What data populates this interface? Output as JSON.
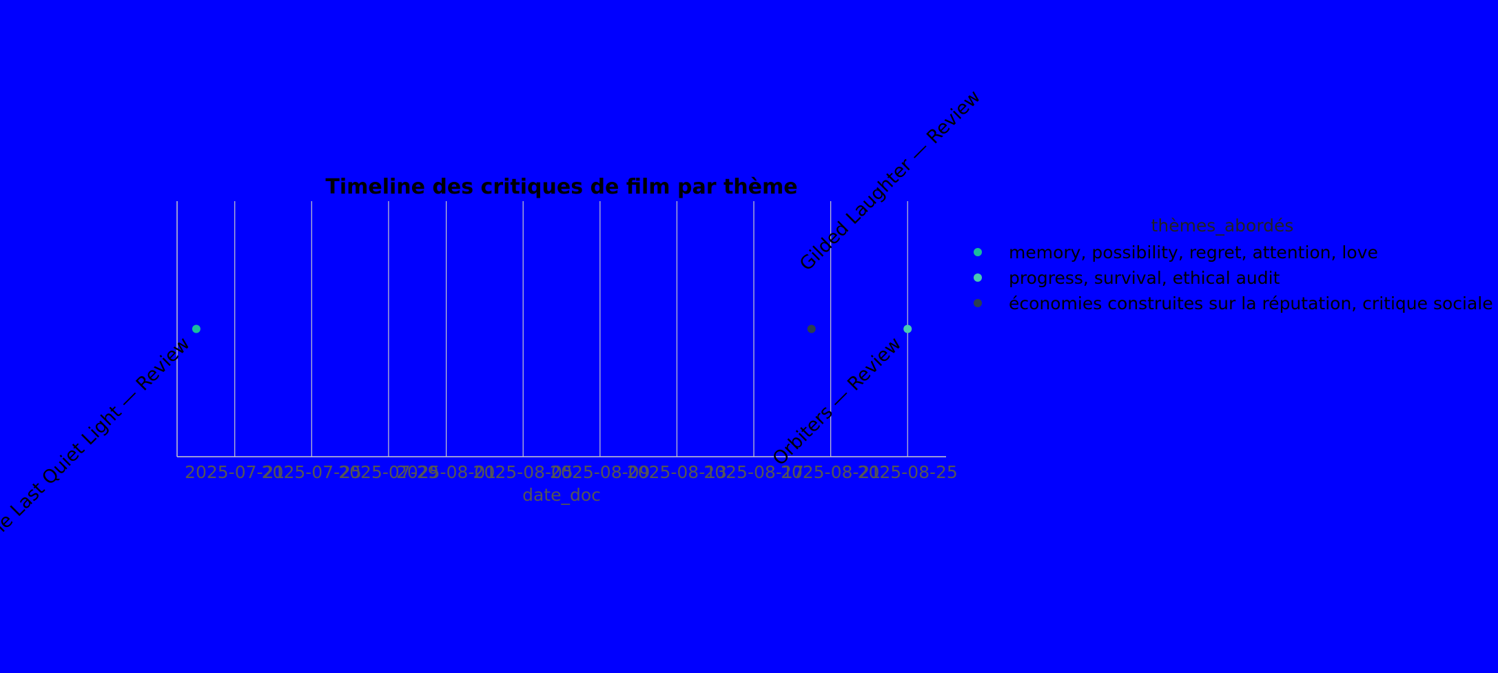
{
  "chart_data": {
    "type": "scatter",
    "title": "Timeline des critiques de film par thème",
    "xlabel": "date_doc",
    "ylabel": "",
    "x_ticks": [
      "2025-07-21",
      "2025-07-25",
      "2025-07-29",
      "2025-08-01",
      "2025-08-05",
      "2025-08-09",
      "2025-08-13",
      "2025-08-17",
      "2025-08-21",
      "2025-08-25"
    ],
    "xlim": [
      "2025-07-18",
      "2025-08-27"
    ],
    "legend_title": "thèmes_abordés",
    "legend_position": "right",
    "grid": "vertical",
    "series": [
      {
        "name": "memory, possibility, regret, attention, love",
        "color": "#1abc9c"
      },
      {
        "name": "progress, survival, ethical audit",
        "color": "#48c9b0"
      },
      {
        "name": "économies construites sur la réputation, critique sociale",
        "color": "#2c3e50"
      }
    ],
    "points": [
      {
        "date": "2025-07-19",
        "theme": "memory, possibility, regret, attention, love",
        "label": "The Last Quiet Light — Review"
      },
      {
        "date": "2025-08-20",
        "theme": "économies construites sur la réputation, critique sociale",
        "label": "Gilded Laughter — Review"
      },
      {
        "date": "2025-08-25",
        "theme": "progress, survival, ethical audit",
        "label": "Orbiters — Review"
      }
    ]
  }
}
